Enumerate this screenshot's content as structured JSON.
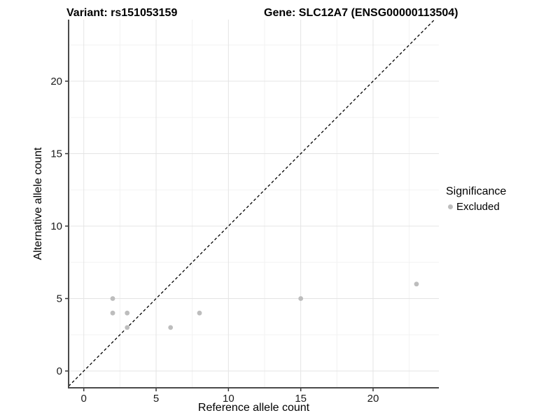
{
  "header": {
    "variant_title": "Variant: rs151053159",
    "gene_title": "Gene: SLC12A7 (ENSG00000113504)"
  },
  "chart_data": {
    "type": "scatter",
    "xlabel": "Reference allele count",
    "ylabel": "Alternative allele count",
    "xlim": [
      -1.05,
      24.55
    ],
    "ylim": [
      -1.16,
      24.25
    ],
    "x_ticks": [
      0,
      5,
      10,
      15,
      20
    ],
    "y_ticks": [
      0,
      5,
      10,
      15,
      20
    ],
    "x_minor_ticks": [
      2.5,
      7.5,
      12.5,
      17.5,
      22.5
    ],
    "y_minor_ticks": [
      2.5,
      7.5,
      12.5,
      17.5,
      22.5
    ],
    "grid": "on",
    "identity_line": {
      "slope": 1,
      "intercept": 0,
      "style": "dashed",
      "color": "#000000"
    },
    "series": [
      {
        "name": "Excluded",
        "color": "#bdbdbd",
        "marker": "circle",
        "points": [
          [
            2,
            4
          ],
          [
            2,
            5
          ],
          [
            3,
            3
          ],
          [
            3,
            4
          ],
          [
            6,
            3
          ],
          [
            8,
            4
          ],
          [
            15,
            5
          ],
          [
            23,
            6
          ]
        ]
      }
    ],
    "legend": {
      "title": "Significance",
      "position": "right",
      "entries": [
        {
          "label": "Excluded",
          "color": "#bdbdbd"
        }
      ]
    }
  },
  "style": {
    "background": "#ffffff",
    "major_grid_color": "#e4e4e4",
    "minor_grid_color": "#f2f2f2",
    "axis_line_color": "#4a4a4a",
    "tick_mark_color": "#333333",
    "tick_label_color": "#1a1a1a",
    "point_color": "#bdbdbd"
  }
}
